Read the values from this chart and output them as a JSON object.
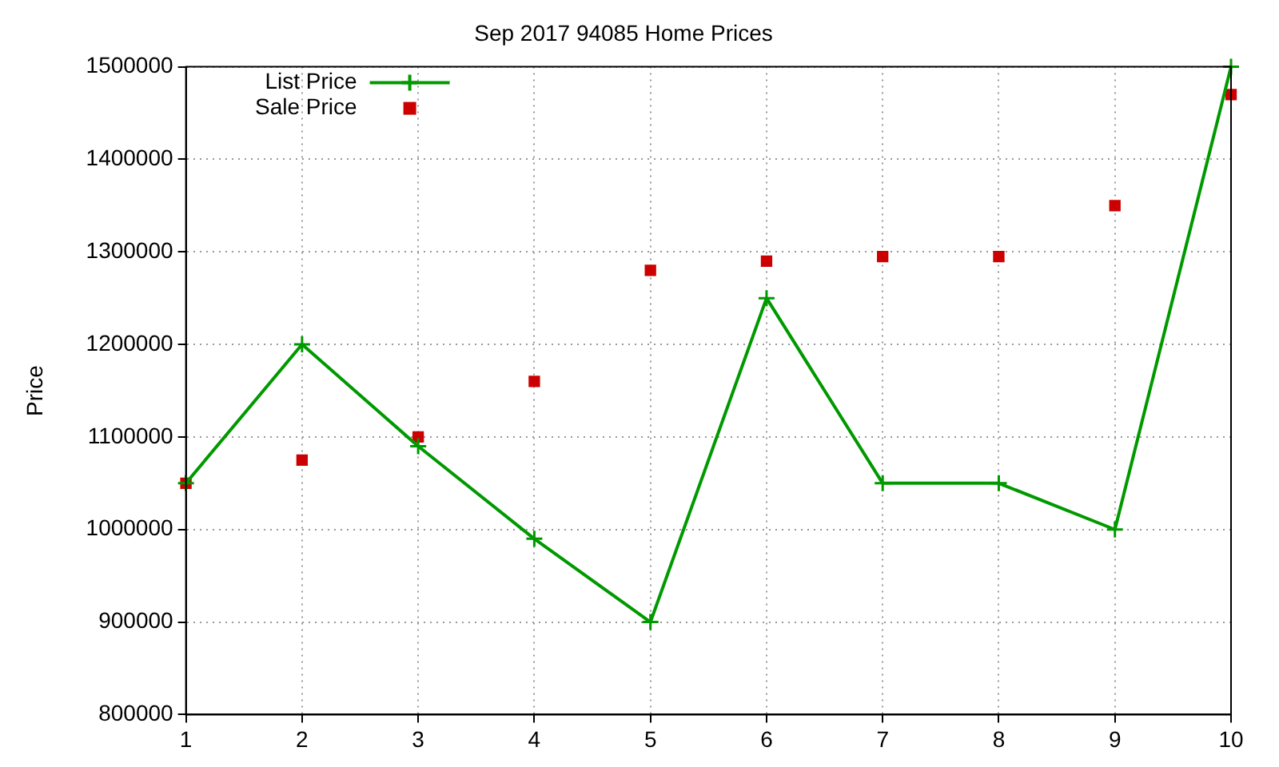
{
  "chart_data": {
    "type": "line",
    "title": "Sep 2017 94085 Home Prices",
    "ylabel": "Price",
    "x": [
      1,
      2,
      3,
      4,
      5,
      6,
      7,
      8,
      9,
      10
    ],
    "xlim": [
      1,
      10
    ],
    "xticks": [
      1,
      2,
      3,
      4,
      5,
      6,
      7,
      8,
      9,
      10
    ],
    "ylim": [
      800000,
      1500000
    ],
    "yticks": [
      800000,
      900000,
      1000000,
      1100000,
      1200000,
      1300000,
      1400000,
      1500000
    ],
    "grid": true,
    "legend": "top left",
    "series": [
      {
        "name": "List Price",
        "type": "line",
        "color": "#009900",
        "marker": "cross",
        "values": [
          1050000,
          1200000,
          1090000,
          990000,
          900000,
          1250000,
          1050000,
          1050000,
          1000000,
          1500000
        ]
      },
      {
        "name": "Sale Price",
        "type": "scatter",
        "color": "#cc0000",
        "marker": "square",
        "values": [
          1050000,
          1075000,
          1100000,
          1160000,
          1280000,
          1290000,
          1295000,
          1295000,
          1350000,
          1470000
        ]
      }
    ]
  }
}
